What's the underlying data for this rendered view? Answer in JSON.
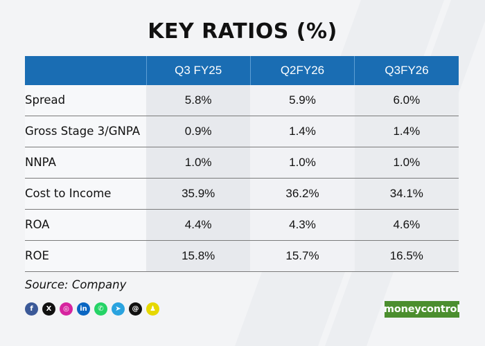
{
  "chart_data": {
    "type": "table",
    "title": "KEY RATIOS (%)",
    "columns": [
      "",
      "Q3 FY25",
      "Q2FY26",
      "Q3FY26"
    ],
    "rows": [
      {
        "label": "Spread",
        "values": [
          "5.8%",
          "5.9%",
          "6.0%"
        ]
      },
      {
        "label": "Gross Stage 3/GNPA",
        "values": [
          "0.9%",
          "1.4%",
          "1.4%"
        ]
      },
      {
        "label": "NNPA",
        "values": [
          "1.0%",
          "1.0%",
          "1.0%"
        ]
      },
      {
        "label": "Cost to Income",
        "values": [
          "35.9%",
          "36.2%",
          "34.1%"
        ]
      },
      {
        "label": "ROA",
        "values": [
          "4.4%",
          "4.3%",
          "4.6%"
        ]
      },
      {
        "label": "ROE",
        "values": [
          "15.8%",
          "15.7%",
          "16.5%"
        ]
      }
    ],
    "source": "Source: Company"
  },
  "social_icons": [
    {
      "name": "facebook-icon",
      "glyph": "f",
      "color": "#3b5998"
    },
    {
      "name": "x-icon",
      "glyph": "X",
      "color": "#111111"
    },
    {
      "name": "instagram-icon",
      "glyph": "◎",
      "color": "#d6249f"
    },
    {
      "name": "linkedin-icon",
      "glyph": "in",
      "color": "#0a66c2"
    },
    {
      "name": "whatsapp-icon",
      "glyph": "✆",
      "color": "#25d366"
    },
    {
      "name": "telegram-icon",
      "glyph": "➤",
      "color": "#2aa3df"
    },
    {
      "name": "threads-icon",
      "glyph": "@",
      "color": "#111111"
    },
    {
      "name": "snapchat-icon",
      "glyph": "♟",
      "color": "#e6d800"
    }
  ],
  "brand": {
    "logo_text": "moneycontrol"
  }
}
